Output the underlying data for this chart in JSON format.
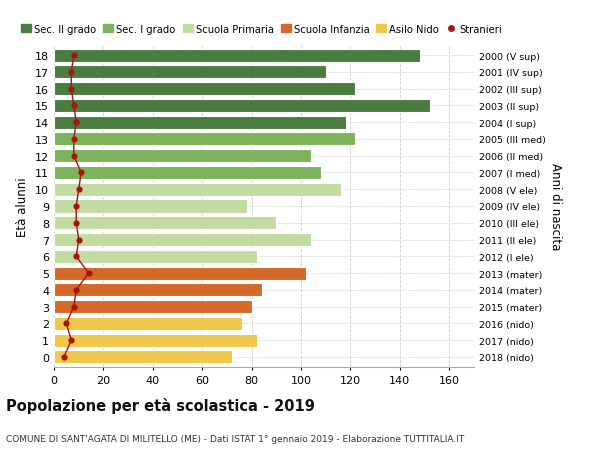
{
  "ages": [
    18,
    17,
    16,
    15,
    14,
    13,
    12,
    11,
    10,
    9,
    8,
    7,
    6,
    5,
    4,
    3,
    2,
    1,
    0
  ],
  "values": [
    148,
    110,
    122,
    152,
    118,
    122,
    104,
    108,
    116,
    78,
    90,
    104,
    82,
    102,
    84,
    80,
    76,
    82,
    72
  ],
  "stranieri": [
    8,
    7,
    7,
    8,
    9,
    8,
    8,
    11,
    10,
    9,
    9,
    10,
    9,
    14,
    9,
    8,
    5,
    7,
    4
  ],
  "right_labels": [
    "2000 (V sup)",
    "2001 (IV sup)",
    "2002 (III sup)",
    "2003 (II sup)",
    "2004 (I sup)",
    "2005 (III med)",
    "2006 (II med)",
    "2007 (I med)",
    "2008 (V ele)",
    "2009 (IV ele)",
    "2010 (III ele)",
    "2011 (II ele)",
    "2012 (I ele)",
    "2013 (mater)",
    "2014 (mater)",
    "2015 (mater)",
    "2016 (nido)",
    "2017 (nido)",
    "2018 (nido)"
  ],
  "bar_colors": [
    "#4a7c3f",
    "#4a7c3f",
    "#4a7c3f",
    "#4a7c3f",
    "#4a7c3f",
    "#7db35a",
    "#7db35a",
    "#7db35a",
    "#c2dba0",
    "#c2dba0",
    "#c2dba0",
    "#c2dba0",
    "#c2dba0",
    "#d4692a",
    "#d4692a",
    "#d4692a",
    "#f0c84a",
    "#f0c84a",
    "#f0c84a"
  ],
  "legend_labels": [
    "Sec. II grado",
    "Sec. I grado",
    "Scuola Primaria",
    "Scuola Infanzia",
    "Asilo Nido",
    "Stranieri"
  ],
  "legend_colors": [
    "#4a7c3f",
    "#7db35a",
    "#c2dba0",
    "#d4692a",
    "#f0c84a",
    "#aa1111"
  ],
  "ylabel": "Età alunni",
  "right_ylabel": "Anni di nascita",
  "title": "Popolazione per età scolastica - 2019",
  "subtitle": "COMUNE DI SANT'AGATA DI MILITELLO (ME) - Dati ISTAT 1° gennaio 2019 - Elaborazione TUTTITALIA.IT",
  "xlim": [
    0,
    170
  ],
  "xticks": [
    0,
    20,
    40,
    60,
    80,
    100,
    120,
    140,
    160
  ],
  "bar_height": 0.78,
  "stranieri_color": "#aa1111",
  "grid_color": "#cccccc"
}
